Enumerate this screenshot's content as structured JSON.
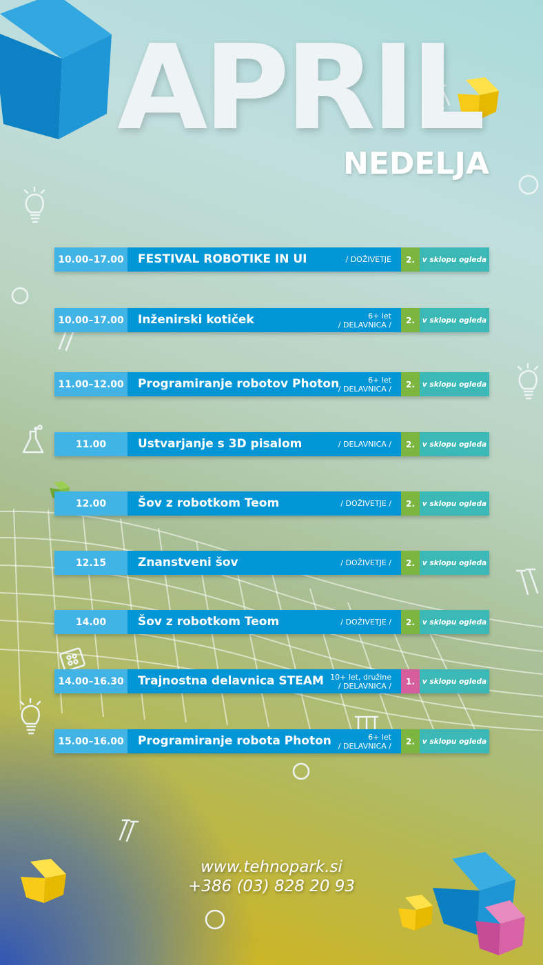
{
  "header": {
    "month": "APRIL",
    "day": "NEDELJA"
  },
  "colors": {
    "time_bg": "#41b4e5",
    "title_bg": "#0396d6",
    "floor_2_bg": "#7cb540",
    "floor_1_bg": "#d75e9e",
    "note_bg": "#3cb9b6"
  },
  "events": [
    {
      "time": "10.00–17.00",
      "title": "FESTIVAL ROBOTIKE IN UI",
      "age": "",
      "category": "/ DOŽIVETJE",
      "floor": "2.",
      "note": "v sklopu ogleda"
    },
    {
      "time": "10.00–17.00",
      "title": "Inženirski kotiček",
      "age": "6+ let",
      "category": "/ DELAVNICA /",
      "floor": "2.",
      "note": "v sklopu ogleda"
    },
    {
      "time": "11.00–12.00",
      "title": "Programiranje robotov Photon",
      "age": "6+ let",
      "category": "/ DELAVNICA /",
      "floor": "2.",
      "note": "v sklopu ogleda"
    },
    {
      "time": "11.00",
      "title": "Ustvarjanje s 3D pisalom",
      "age": "",
      "category": "/ DELAVNICA /",
      "floor": "2.",
      "note": "v sklopu ogleda"
    },
    {
      "time": "12.00",
      "title": "Šov z robotkom Teom",
      "age": "",
      "category": "/ DOŽIVETJE /",
      "floor": "2.",
      "note": "v sklopu ogleda"
    },
    {
      "time": "12.15",
      "title": "Znanstveni šov",
      "age": "",
      "category": "/ DOŽIVETJE /",
      "floor": "2.",
      "note": "v sklopu ogleda"
    },
    {
      "time": "14.00",
      "title": "Šov z robotkom Teom",
      "age": "",
      "category": "/ DOŽIVETJE /",
      "floor": "2.",
      "note": "v sklopu ogleda"
    },
    {
      "time": "14.00–16.30",
      "title": "Trajnostna delavnica STEAM",
      "age": "10+ let, družine",
      "category": "/ DELAVNICA /",
      "floor": "1.",
      "note": "v sklopu ogleda"
    },
    {
      "time": "15.00–16.00",
      "title": "Programiranje robota Photon",
      "age": "6+ let",
      "category": "/ DELAVNICA /",
      "floor": "2.",
      "note": "v sklopu ogleda"
    }
  ],
  "footer": {
    "website": "www.tehnopark.si",
    "phone": "+386 (03) 828 20 93"
  },
  "decorations": [
    "cube-icon",
    "lightbulb-icon",
    "test-tubes-icon",
    "flask-icon",
    "circle-icon",
    "wire-grid"
  ]
}
